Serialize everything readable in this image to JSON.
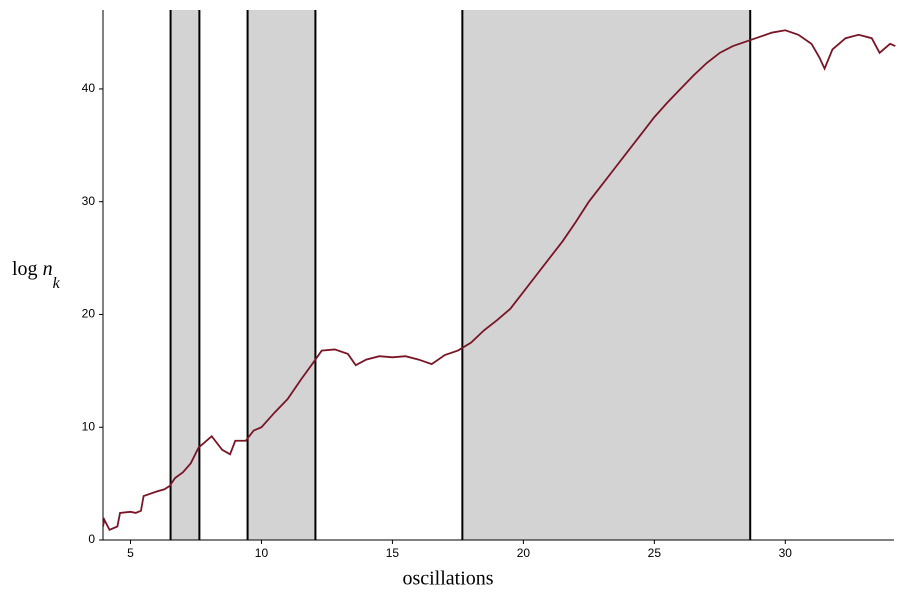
{
  "chart_data": {
    "type": "line",
    "xlabel": "oscillations",
    "ylabel": {
      "text": "log",
      "var": "n",
      "sub": "k"
    },
    "x": [
      3.95,
      4.0,
      4.2,
      4.5,
      4.6,
      5.0,
      5.2,
      5.4,
      5.5,
      6.0,
      6.3,
      6.5,
      6.7,
      7.0,
      7.3,
      7.6,
      7.9,
      8.1,
      8.5,
      8.8,
      9.0,
      9.4,
      9.7,
      10.0,
      10.5,
      11.0,
      11.5,
      12.0,
      12.3,
      12.8,
      13.3,
      13.6,
      14.0,
      14.5,
      15.0,
      15.5,
      16.0,
      16.5,
      17.0,
      17.5,
      18.0,
      18.5,
      19.0,
      19.5,
      20.0,
      20.5,
      21.0,
      21.5,
      22.0,
      22.5,
      23.0,
      23.5,
      24.0,
      24.5,
      25.0,
      25.5,
      26.0,
      26.5,
      27.0,
      27.5,
      28.0,
      28.5,
      29.0,
      29.5,
      30.0,
      30.5,
      31.0,
      31.3,
      31.5,
      31.8,
      32.3,
      32.8,
      33.3,
      33.6,
      34.0,
      34.2
    ],
    "values": [
      1.2,
      1.8,
      0.9,
      1.2,
      2.4,
      2.5,
      2.4,
      2.6,
      3.9,
      4.3,
      4.5,
      4.8,
      5.5,
      6.0,
      6.8,
      8.2,
      8.8,
      9.2,
      8.0,
      7.6,
      8.8,
      8.8,
      9.7,
      10.0,
      11.3,
      12.5,
      14.2,
      15.8,
      16.8,
      16.9,
      16.5,
      15.5,
      16.0,
      16.3,
      16.2,
      16.3,
      16.0,
      15.6,
      16.4,
      16.8,
      17.5,
      18.6,
      19.5,
      20.5,
      22.0,
      23.5,
      25.0,
      26.5,
      28.2,
      30.0,
      31.5,
      33.0,
      34.5,
      36.0,
      37.5,
      38.8,
      40.0,
      41.2,
      42.3,
      43.2,
      43.8,
      44.2,
      44.6,
      45.0,
      45.2,
      44.8,
      44.0,
      42.8,
      41.8,
      43.5,
      44.5,
      44.8,
      44.5,
      43.2,
      44.0,
      43.8
    ],
    "color": "#7a1526",
    "shaded_regions": [
      [
        6.53,
        7.63
      ],
      [
        9.47,
        12.06
      ],
      [
        17.67,
        28.66
      ]
    ],
    "shade_color": "#d3d3d3",
    "xlim": [
      3.95,
      34.15
    ],
    "ylim": [
      0,
      47
    ],
    "xticks": [
      5,
      10,
      15,
      20,
      25,
      30
    ],
    "yticks": [
      0,
      10,
      20,
      30,
      40
    ],
    "grid": false
  }
}
